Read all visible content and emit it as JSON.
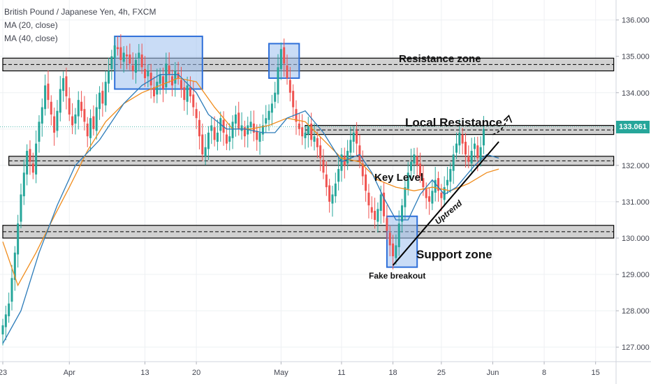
{
  "legend": {
    "symbol_line": "British Pound / Japanese Yen, 4h, FXCM",
    "ma20_line": "MA (20, close)",
    "ma40_line": "MA (40, close)"
  },
  "last_price_label": "133.061",
  "colors": {
    "up": "#26a69a",
    "down": "#ef5350",
    "ma20": "#2b7bb9",
    "ma40": "#f08c1c",
    "zone_fill": "#c2c2c2",
    "box_fill": "#9cc0ee",
    "box_stroke": "#2e6fd9",
    "grid": "#eef0f3",
    "axis_text": "#434651"
  },
  "chart_data": {
    "type": "candlestick",
    "title": "British Pound / Japanese Yen, 4h, FXCM",
    "indicators": [
      "MA (20, close)",
      "MA (40, close)"
    ],
    "ylim": [
      126.6,
      136.55
    ],
    "y_ticks": [
      "127.000",
      "128.000",
      "129.000",
      "130.000",
      "131.000",
      "132.000",
      "133.000",
      "134.000",
      "135.000",
      "136.000"
    ],
    "x_ticks": [
      {
        "label": "23",
        "slot": 0
      },
      {
        "label": "Apr",
        "slot": 22
      },
      {
        "label": "13",
        "slot": 47
      },
      {
        "label": "20",
        "slot": 64
      },
      {
        "label": "May",
        "slot": 92
      },
      {
        "label": "11",
        "slot": 112
      },
      {
        "label": "18",
        "slot": 129
      },
      {
        "label": "25",
        "slot": 145
      },
      {
        "label": "Jun",
        "slot": 162
      },
      {
        "label": "8",
        "slot": 179
      },
      {
        "label": "15",
        "slot": 196
      }
    ],
    "slot_count": 202,
    "grid": true,
    "close": [
      127.6,
      127.9,
      128.2,
      128.9,
      129.6,
      130.4,
      131.2,
      131.8,
      132.4,
      132.1,
      131.8,
      132.6,
      133.2,
      133.6,
      134.2,
      133.8,
      133.4,
      132.9,
      133.5,
      134.1,
      134.4,
      133.9,
      133.4,
      133.1,
      133.4,
      133.8,
      133.5,
      133.2,
      132.8,
      133.3,
      133.0,
      133.6,
      134.0,
      133.7,
      134.3,
      134.6,
      135.0,
      135.3,
      135.2,
      134.9,
      135.1,
      135.0,
      134.8,
      134.6,
      134.9,
      135.1,
      134.7,
      134.4,
      134.6,
      134.2,
      133.9,
      134.3,
      134.5,
      134.1,
      134.8,
      134.5,
      134.2,
      134.6,
      134.4,
      134.1,
      133.8,
      134.2,
      133.9,
      133.6,
      133.3,
      132.8,
      132.3,
      132.5,
      132.9,
      133.1,
      132.7,
      132.9,
      133.3,
      132.9,
      132.6,
      132.8,
      133.2,
      133.4,
      133.0,
      133.1,
      132.8,
      133.1,
      133.2,
      132.9,
      132.7,
      132.9,
      133.1,
      133.3,
      133.5,
      133.7,
      134.0,
      134.7,
      135.2,
      134.8,
      134.4,
      134.0,
      133.6,
      133.2,
      133.0,
      132.8,
      132.9,
      133.1,
      132.7,
      132.8,
      132.5,
      132.2,
      131.8,
      131.4,
      131.0,
      131.2,
      131.5,
      131.9,
      132.3,
      132.0,
      132.4,
      132.7,
      132.9,
      132.6,
      132.1,
      131.7,
      131.3,
      130.9,
      130.7,
      130.5,
      130.8,
      131.2,
      130.6,
      130.2,
      129.8,
      129.5,
      129.8,
      130.4,
      130.9,
      131.4,
      131.8,
      132.1,
      132.3,
      132.0,
      131.7,
      131.4,
      131.1,
      131.0,
      131.3,
      131.6,
      131.3,
      131.1,
      131.4,
      131.6,
      131.9,
      132.3,
      132.6,
      132.9,
      132.6,
      132.3,
      132.1,
      132.4,
      132.6,
      132.2,
      132.5,
      133.0
    ],
    "ma20": [
      [
        0,
        127.1
      ],
      [
        6,
        128.0
      ],
      [
        12,
        129.6
      ],
      [
        18,
        130.9
      ],
      [
        24,
        132.0
      ],
      [
        32,
        132.7
      ],
      [
        40,
        133.7
      ],
      [
        46,
        134.2
      ],
      [
        52,
        134.5
      ],
      [
        58,
        134.5
      ],
      [
        64,
        134.0
      ],
      [
        68,
        133.4
      ],
      [
        74,
        133.0
      ],
      [
        80,
        133.0
      ],
      [
        86,
        132.9
      ],
      [
        90,
        132.9
      ],
      [
        94,
        133.3
      ],
      [
        100,
        133.5
      ],
      [
        106,
        132.9
      ],
      [
        112,
        132.1
      ],
      [
        118,
        132.3
      ],
      [
        122,
        131.8
      ],
      [
        126,
        131.1
      ],
      [
        130,
        130.5
      ],
      [
        134,
        130.5
      ],
      [
        138,
        131.2
      ],
      [
        142,
        131.6
      ],
      [
        146,
        131.2
      ],
      [
        150,
        131.4
      ],
      [
        156,
        132.0
      ],
      [
        160,
        132.3
      ],
      [
        164,
        132.2
      ]
    ],
    "ma40": [
      [
        0,
        129.9
      ],
      [
        5,
        128.7
      ],
      [
        11,
        129.6
      ],
      [
        17,
        130.6
      ],
      [
        22,
        131.4
      ],
      [
        28,
        132.4
      ],
      [
        34,
        133.2
      ],
      [
        40,
        133.7
      ],
      [
        46,
        134.0
      ],
      [
        52,
        134.2
      ],
      [
        58,
        134.4
      ],
      [
        64,
        134.3
      ],
      [
        70,
        133.6
      ],
      [
        76,
        133.0
      ],
      [
        82,
        133.0
      ],
      [
        88,
        133.1
      ],
      [
        94,
        133.3
      ],
      [
        100,
        133.2
      ],
      [
        106,
        132.7
      ],
      [
        112,
        132.2
      ],
      [
        118,
        132.1
      ],
      [
        124,
        131.6
      ],
      [
        130,
        131.4
      ],
      [
        136,
        131.3
      ],
      [
        142,
        131.4
      ],
      [
        148,
        131.3
      ],
      [
        154,
        131.5
      ],
      [
        160,
        131.8
      ],
      [
        164,
        131.9
      ]
    ],
    "zones": [
      {
        "name": "Resistance zone",
        "y_low": 134.6,
        "y_high": 134.95,
        "slot_start": 0,
        "slot_end": 202
      },
      {
        "name": "Local Resistance",
        "y_low": 132.85,
        "y_high": 133.1,
        "slot_start": 100,
        "slot_end": 202
      },
      {
        "name": "Key Level",
        "y_low": 132.0,
        "y_high": 132.25,
        "slot_start": 2,
        "slot_end": 202
      },
      {
        "name": "Support zone",
        "y_low": 130.0,
        "y_high": 130.35,
        "slot_start": 0,
        "slot_end": 202
      }
    ],
    "boxes": [
      {
        "slot_start": 37,
        "slot_end": 66,
        "y_low": 134.1,
        "y_high": 135.55
      },
      {
        "slot_start": 88,
        "slot_end": 98,
        "y_low": 134.4,
        "y_high": 135.35
      },
      {
        "slot_start": 127,
        "slot_end": 137,
        "y_low": 129.2,
        "y_high": 130.6
      }
    ],
    "uptrend_line": {
      "start": [
        129,
        129.25
      ],
      "end": [
        164,
        132.65
      ]
    },
    "annotations": {
      "resistance_zone": "Resistance zone",
      "local_resistance": "Local Resistance",
      "key_level": "Key Level",
      "uptrend": "Uptrend",
      "support_zone": "Support zone",
      "fake_breakout": "Fake breakout"
    },
    "last_price": 133.061
  }
}
